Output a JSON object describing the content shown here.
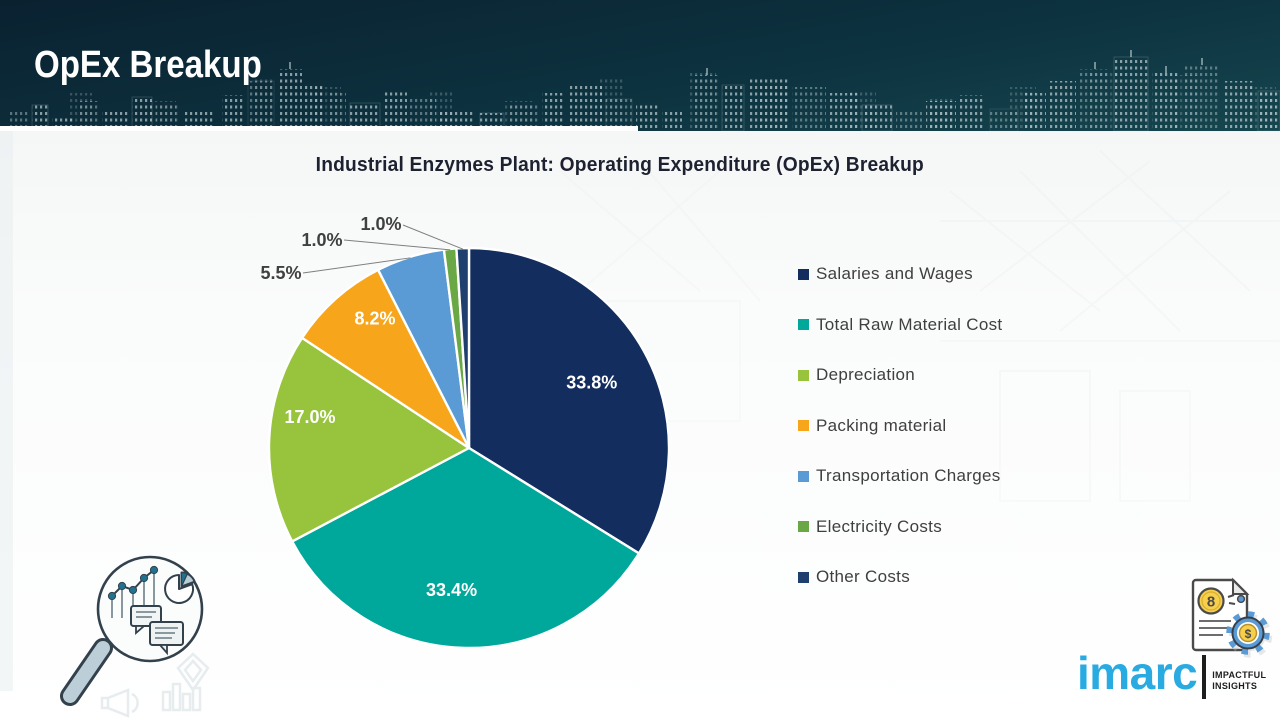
{
  "header": {
    "title": "OpEx Breakup"
  },
  "chart_title": "Industrial Enzymes Plant: Operating Expenditure (OpEx) Breakup",
  "chart_data": {
    "type": "pie",
    "title": "Industrial Enzymes Plant: Operating Expenditure (OpEx) Breakup",
    "labels": [
      "Salaries and Wages",
      "Total Raw Material Cost",
      "Depreciation",
      "Packing material",
      "Transportation Charges",
      "Electricity Costs",
      "Other Costs"
    ],
    "values": [
      33.8,
      33.4,
      17.0,
      8.2,
      5.5,
      1.0,
      1.0
    ],
    "value_labels": [
      "33.8%",
      "33.4%",
      "17.0%",
      "8.2%",
      "5.5%",
      "1.0%",
      "1.0%"
    ],
    "colors": [
      "#122d5e",
      "#00a79b",
      "#97c43c",
      "#f7a61c",
      "#5b9bd5",
      "#6aa845",
      "#1f3f6e"
    ],
    "inside_labels": [
      true,
      true,
      true,
      true,
      false,
      false,
      false
    ],
    "start_angle_deg": 0,
    "direction": "clockwise",
    "legend_position": "right",
    "inside_label_color": "#ffffff",
    "outside_label_color": "#404040"
  },
  "branding": {
    "logo_text": "imarc",
    "tagline_line1": "IMPACTFUL",
    "tagline_line2": "INSIGHTS"
  }
}
